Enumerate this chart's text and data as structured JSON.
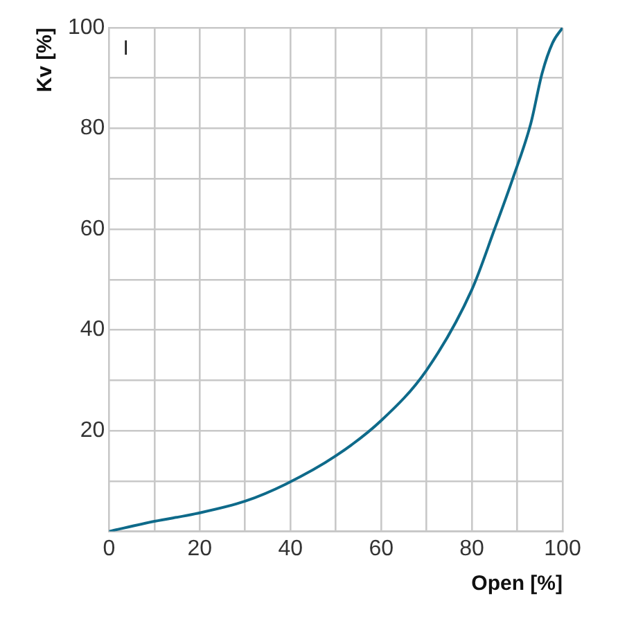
{
  "chart_data": {
    "type": "line",
    "xlabel": "Open [%]",
    "ylabel": "Kv [%]",
    "annotations": [
      "I"
    ],
    "x": [
      0,
      10,
      19,
      30,
      39,
      50,
      60,
      70,
      80,
      85,
      89,
      93,
      95.5,
      97.8,
      100
    ],
    "series": [
      {
        "color": "#0e6a8a",
        "values": [
          0,
          2,
          3.5,
          6,
          9.4,
          15,
          22,
          32,
          48,
          60,
          70,
          81,
          91,
          97,
          100
        ]
      }
    ],
    "xlim": [
      0,
      100
    ],
    "ylim": [
      0,
      100
    ],
    "xticks": [
      0,
      {
        "value": 10,
        "label": null
      },
      20,
      {
        "value": 30,
        "label": null
      },
      40,
      {
        "value": 50,
        "label": null
      },
      60,
      {
        "value": 70,
        "label": null
      },
      80,
      {
        "value": 90,
        "label": null
      },
      100
    ],
    "yticks": [
      {
        "value": 0,
        "label": null
      },
      {
        "value": 10,
        "label": null
      },
      20,
      {
        "value": 30,
        "label": null
      },
      40,
      {
        "value": 50,
        "label": null
      },
      60,
      {
        "value": 70,
        "label": null
      },
      80,
      {
        "value": 90,
        "label": null
      },
      100
    ],
    "grid": true,
    "marker": "none",
    "line_style": "solid",
    "legend": false
  }
}
